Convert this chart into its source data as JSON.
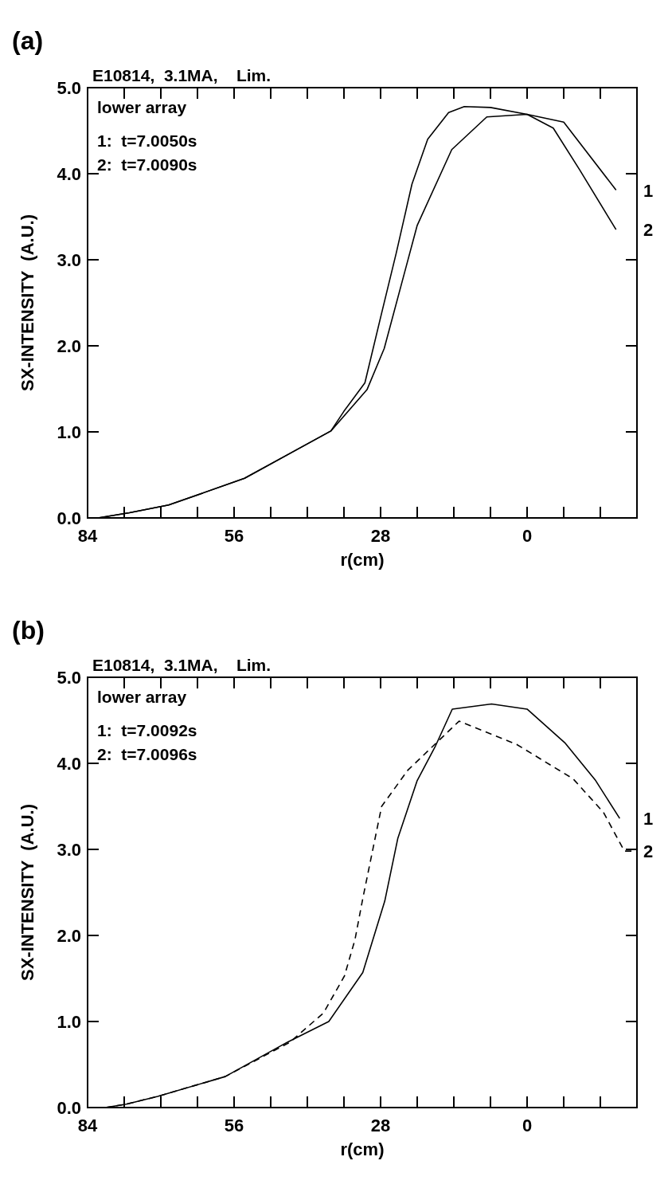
{
  "chart_data": [
    {
      "type": "line",
      "title": "(a)",
      "subtitle": "E10814,  3.1MA,    Lim.",
      "xlabel": "r(cm)",
      "ylabel": "SX-INTENSITY  (A.U.)",
      "annotations": [
        "lower array",
        "1:  t=7.0050s",
        "2:  t=7.0090s"
      ],
      "xlim": [
        84,
        -21
      ],
      "xticks": [
        84,
        {
          "value": 77,
          "label": null
        },
        {
          "value": 70,
          "label": null
        },
        {
          "value": 63,
          "label": null
        },
        56,
        {
          "value": 49,
          "label": null
        },
        {
          "value": 42,
          "label": null
        },
        {
          "value": 35,
          "label": null
        },
        28,
        {
          "value": 21,
          "label": null
        },
        {
          "value": 14,
          "label": null
        },
        {
          "value": 7,
          "label": null
        },
        0,
        {
          "value": -7,
          "label": null
        },
        {
          "value": -14,
          "label": null
        }
      ],
      "ylim": [
        0,
        5
      ],
      "yticks": [
        {
          "value": 0,
          "label": "0.0"
        },
        {
          "value": 1,
          "label": "1.0"
        },
        {
          "value": 2,
          "label": "2.0"
        },
        {
          "value": 3,
          "label": "3.0"
        },
        {
          "value": 4,
          "label": "4.0"
        },
        {
          "value": 5,
          "label": "5.0"
        }
      ],
      "series": [
        {
          "name": "1",
          "color": "#000000",
          "line_style": "solid",
          "x": [
            82,
            76,
            68.5,
            54,
            45,
            37.5,
            30.6,
            27.3,
            21,
            14.4,
            7.7,
            0,
            -7,
            -17
          ],
          "values": [
            0,
            0.06,
            0.15,
            0.46,
            0.76,
            1.01,
            1.49,
            1.97,
            3.4,
            4.28,
            4.66,
            4.69,
            4.6,
            3.81
          ]
        },
        {
          "name": "2",
          "color": "#000000",
          "line_style": "solid",
          "x": [
            82,
            76,
            68.5,
            54,
            45,
            37.5,
            35,
            31,
            28,
            25,
            22,
            19,
            15,
            12,
            7,
            0,
            -5,
            -10,
            -17
          ],
          "values": [
            0,
            0.06,
            0.15,
            0.46,
            0.76,
            1.01,
            1.24,
            1.57,
            2.33,
            3.08,
            3.88,
            4.4,
            4.71,
            4.78,
            4.77,
            4.69,
            4.53,
            4.05,
            3.35
          ]
        }
      ]
    },
    {
      "type": "line",
      "title": "(b)",
      "subtitle": "E10814,  3.1MA,    Lim.",
      "xlabel": "r(cm)",
      "ylabel": "SX-INTENSITY  (A.U.)",
      "annotations": [
        "lower array",
        "1:  t=7.0092s",
        "2:  t=7.0096s"
      ],
      "xlim": [
        84,
        -21
      ],
      "xticks": [
        84,
        {
          "value": 77,
          "label": null
        },
        {
          "value": 70,
          "label": null
        },
        {
          "value": 63,
          "label": null
        },
        56,
        {
          "value": 49,
          "label": null
        },
        {
          "value": 42,
          "label": null
        },
        {
          "value": 35,
          "label": null
        },
        28,
        {
          "value": 21,
          "label": null
        },
        {
          "value": 14,
          "label": null
        },
        {
          "value": 7,
          "label": null
        },
        0,
        {
          "value": -7,
          "label": null
        },
        {
          "value": -14,
          "label": null
        }
      ],
      "ylim": [
        0,
        5
      ],
      "yticks": [
        {
          "value": 0,
          "label": "0.0"
        },
        {
          "value": 1,
          "label": "1.0"
        },
        {
          "value": 2,
          "label": "2.0"
        },
        {
          "value": 3,
          "label": "3.0"
        },
        {
          "value": 4,
          "label": "4.0"
        },
        {
          "value": 5,
          "label": "5.0"
        }
      ],
      "series": [
        {
          "name": "1",
          "color": "#000000",
          "line_style": "solid",
          "x": [
            80.6,
            76.6,
            70.6,
            57.7,
            45.8,
            37.9,
            31.4,
            27.2,
            24.7,
            21,
            17.6,
            14.3,
            6.8,
            0,
            -7.2,
            -13.1,
            -17.7
          ],
          "values": [
            0,
            0.04,
            0.13,
            0.36,
            0.76,
            1,
            1.57,
            2.4,
            3.13,
            3.8,
            4.19,
            4.63,
            4.69,
            4.63,
            4.24,
            3.8,
            3.36
          ]
        },
        {
          "name": "2",
          "color": "#000000",
          "line_style": "dashed",
          "x": [
            80.6,
            76.6,
            70.6,
            57.7,
            45.3,
            38.9,
            34.9,
            32.9,
            31.4,
            27.8,
            22.8,
            13,
            2,
            -8.8,
            -14.6,
            -18.6,
            -21
          ],
          "values": [
            0,
            0.04,
            0.13,
            0.36,
            0.76,
            1.1,
            1.53,
            1.95,
            2.43,
            3.5,
            3.92,
            4.49,
            4.22,
            3.82,
            3.43,
            2.98,
            2.98
          ]
        }
      ]
    }
  ]
}
